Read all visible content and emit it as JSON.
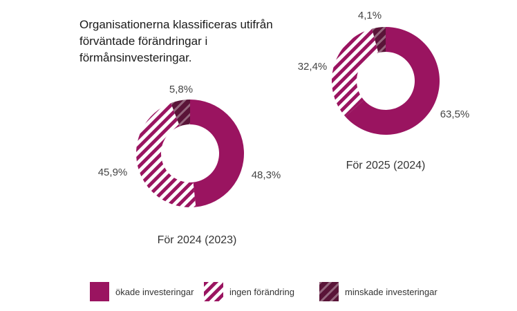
{
  "title": "Organisationerna klassificeras utifrån förväntade förändringar i förmånsinvesteringar.",
  "colors": {
    "increased": "#9a1460",
    "hatch_light": "#9a1460",
    "hatch_dark": "#5a1438"
  },
  "chart_data": [
    {
      "type": "pie",
      "variant": "donut",
      "caption": "För 2024 (2023)",
      "slices": [
        {
          "category": "ökade investeringar",
          "value": 48.3,
          "label": "48,3%"
        },
        {
          "category": "ingen förändring",
          "value": 45.9,
          "label": "45,9%"
        },
        {
          "category": "minskade investeringar",
          "value": 5.8,
          "label": "5,8%"
        }
      ]
    },
    {
      "type": "pie",
      "variant": "donut",
      "caption": "För 2025 (2024)",
      "slices": [
        {
          "category": "ökade investeringar",
          "value": 63.5,
          "label": "63,5%"
        },
        {
          "category": "ingen förändring",
          "value": 32.4,
          "label": "32,4%"
        },
        {
          "category": "minskade investeringar",
          "value": 4.1,
          "label": "4,1%"
        }
      ]
    }
  ],
  "legend": [
    {
      "label": "ökade investeringar",
      "style": "solid"
    },
    {
      "label": "ingen förändring",
      "style": "hatch-light"
    },
    {
      "label": "minskade investeringar",
      "style": "hatch-dark"
    }
  ]
}
